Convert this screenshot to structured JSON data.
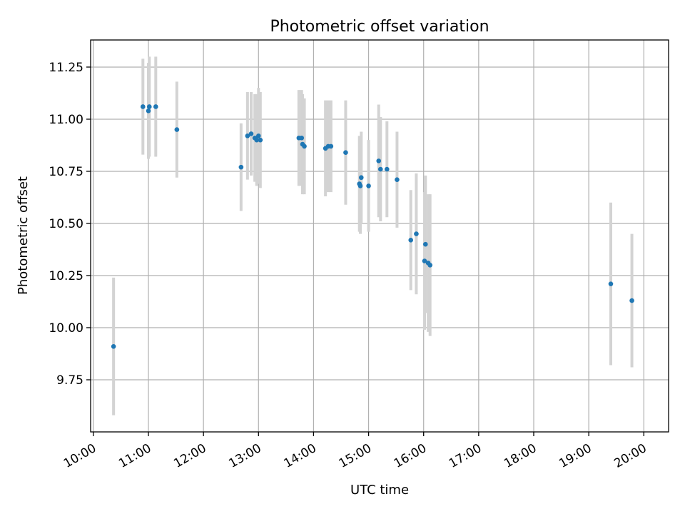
{
  "chart_data": {
    "type": "scatter",
    "title": "Photometric offset variation",
    "xlabel": "UTC time",
    "ylabel": "Photometric offset",
    "x_unit": "hours (UTC)",
    "xlim": [
      "09:57",
      "20:27"
    ],
    "ylim": [
      9.5,
      11.38
    ],
    "grid": true,
    "x_ticks": [
      "10:00",
      "11:00",
      "12:00",
      "13:00",
      "14:00",
      "15:00",
      "16:00",
      "17:00",
      "18:00",
      "19:00",
      "20:00"
    ],
    "y_ticks": [
      "9.75",
      "10.00",
      "10.25",
      "10.50",
      "10.75",
      "11.00",
      "11.25"
    ],
    "colors": {
      "marker": "#1f77b4",
      "errorbar": "#d3d3d3"
    },
    "series": [
      {
        "points": [
          {
            "x": "10:22",
            "y": 9.91,
            "err": 0.33
          },
          {
            "x": "10:54",
            "y": 11.06,
            "err": 0.23
          },
          {
            "x": "11:00",
            "y": 11.04,
            "err": 0.23
          },
          {
            "x": "11:01",
            "y": 11.06,
            "err": 0.24
          },
          {
            "x": "11:08",
            "y": 11.06,
            "err": 0.24
          },
          {
            "x": "11:31",
            "y": 10.95,
            "err": 0.23
          },
          {
            "x": "12:41",
            "y": 10.77,
            "err": 0.21
          },
          {
            "x": "12:48",
            "y": 10.92,
            "err": 0.21
          },
          {
            "x": "12:52",
            "y": 10.93,
            "err": 0.2
          },
          {
            "x": "12:56",
            "y": 10.91,
            "err": 0.21
          },
          {
            "x": "12:58",
            "y": 10.9,
            "err": 0.22
          },
          {
            "x": "13:00",
            "y": 10.92,
            "err": 0.23
          },
          {
            "x": "13:02",
            "y": 10.9,
            "err": 0.23
          },
          {
            "x": "13:44",
            "y": 10.91,
            "err": 0.23
          },
          {
            "x": "13:47",
            "y": 10.91,
            "err": 0.23
          },
          {
            "x": "13:48",
            "y": 10.88,
            "err": 0.24
          },
          {
            "x": "13:50",
            "y": 10.87,
            "err": 0.23
          },
          {
            "x": "14:13",
            "y": 10.86,
            "err": 0.23
          },
          {
            "x": "14:16",
            "y": 10.87,
            "err": 0.22
          },
          {
            "x": "14:19",
            "y": 10.87,
            "err": 0.22
          },
          {
            "x": "14:35",
            "y": 10.84,
            "err": 0.25
          },
          {
            "x": "14:50",
            "y": 10.69,
            "err": 0.23
          },
          {
            "x": "14:51",
            "y": 10.68,
            "err": 0.23
          },
          {
            "x": "14:52",
            "y": 10.72,
            "err": 0.22
          },
          {
            "x": "15:00",
            "y": 10.68,
            "err": 0.22
          },
          {
            "x": "15:11",
            "y": 10.8,
            "err": 0.27
          },
          {
            "x": "15:13",
            "y": 10.76,
            "err": 0.25
          },
          {
            "x": "15:20",
            "y": 10.76,
            "err": 0.23
          },
          {
            "x": "15:31",
            "y": 10.71,
            "err": 0.23
          },
          {
            "x": "15:46",
            "y": 10.42,
            "err": 0.24
          },
          {
            "x": "15:52",
            "y": 10.45,
            "err": 0.29
          },
          {
            "x": "16:01",
            "y": 10.32,
            "err": 0.33
          },
          {
            "x": "16:02",
            "y": 10.4,
            "err": 0.33
          },
          {
            "x": "16:05",
            "y": 10.31,
            "err": 0.33
          },
          {
            "x": "16:07",
            "y": 10.3,
            "err": 0.34
          },
          {
            "x": "19:24",
            "y": 10.21,
            "err": 0.39
          },
          {
            "x": "19:47",
            "y": 10.13,
            "err": 0.32
          }
        ]
      }
    ]
  }
}
